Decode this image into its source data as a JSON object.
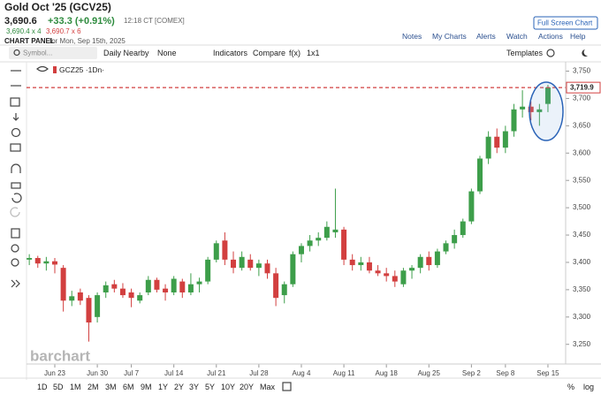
{
  "header": {
    "title": "Gold Oct '25 (GCV25)",
    "last": "3,690.6",
    "change": "+33.3 (+0.91%)",
    "time": "12:18 CT [COMEX]",
    "bid": "3,690.4 x 4",
    "ask": "3,690.7 x 6",
    "panel": "CHART PANEL",
    "date": "for Mon, Sep 15th, 2025",
    "fullscreen": "Full Screen Chart",
    "links": [
      "Notes",
      "My Charts",
      "Alerts",
      "Watch",
      "Actions",
      "Help"
    ]
  },
  "toolbar": {
    "symbol": "Symbol...",
    "items": [
      "Daily Nearby",
      "None",
      "Indicators",
      "Compare",
      "f(x)",
      "1x1"
    ],
    "templates": "Templates"
  },
  "periods": [
    "1D",
    "5D",
    "1M",
    "2M",
    "3M",
    "6M",
    "9M",
    "1Y",
    "2Y",
    "3Y",
    "5Y",
    "10Y",
    "20Y",
    "Max"
  ],
  "scale_options": [
    "%",
    "log"
  ],
  "chart_data": {
    "type": "candlestick",
    "symbol_label": "GCZ25 ·1Dn·",
    "watermark": "barchart",
    "categories": [
      null,
      null,
      null,
      "Jun 23",
      null,
      null,
      null,
      null,
      "Jun 30",
      null,
      null,
      null,
      "Jul 7",
      null,
      null,
      null,
      null,
      "Jul 14",
      null,
      null,
      null,
      null,
      "Jul 21",
      null,
      null,
      null,
      null,
      "Jul 28",
      null,
      null,
      null,
      null,
      "Aug 4",
      null,
      null,
      null,
      null,
      "Aug 11",
      null,
      null,
      null,
      null,
      "Aug 18",
      null,
      null,
      null,
      null,
      "Aug 25",
      null,
      null,
      null,
      null,
      "Sep 2",
      null,
      null,
      null,
      "Sep 8",
      null,
      null,
      null,
      null,
      "Sep 15"
    ],
    "open": [
      3405,
      3408,
      3398,
      3402,
      3390,
      3330,
      3345,
      3335,
      3300,
      3345,
      3360,
      3352,
      3345,
      3330,
      3345,
      3368,
      3352,
      3345,
      3365,
      3345,
      3360,
      3365,
      3405,
      3440,
      3405,
      3390,
      3405,
      3390,
      3398,
      3380,
      3340,
      3360,
      3415,
      3430,
      3440,
      3445,
      3455,
      3460,
      3405,
      3395,
      3400,
      3385,
      3380,
      3375,
      3360,
      3385,
      3390,
      3410,
      3395,
      3420,
      3435,
      3450,
      3475,
      3530,
      3590,
      3630,
      3610,
      3640,
      3680,
      3685,
      3675,
      3690
    ],
    "high": [
      3415,
      3412,
      3410,
      3408,
      3395,
      3348,
      3352,
      3340,
      3345,
      3365,
      3368,
      3362,
      3352,
      3345,
      3375,
      3372,
      3360,
      3375,
      3370,
      3380,
      3372,
      3410,
      3440,
      3455,
      3420,
      3420,
      3415,
      3405,
      3405,
      3390,
      3365,
      3420,
      3435,
      3450,
      3455,
      3475,
      3535,
      3465,
      3415,
      3410,
      3410,
      3395,
      3390,
      3385,
      3390,
      3395,
      3415,
      3420,
      3425,
      3440,
      3460,
      3480,
      3535,
      3595,
      3640,
      3645,
      3650,
      3690,
      3715,
      3695,
      3690,
      3725
    ],
    "low": [
      3395,
      3390,
      3385,
      3380,
      3310,
      3320,
      3322,
      3255,
      3290,
      3335,
      3345,
      3335,
      3318,
      3325,
      3340,
      3345,
      3330,
      3340,
      3335,
      3340,
      3345,
      3360,
      3400,
      3395,
      3380,
      3385,
      3385,
      3375,
      3370,
      3320,
      3325,
      3355,
      3400,
      3420,
      3430,
      3440,
      3445,
      3395,
      3385,
      3385,
      3380,
      3375,
      3365,
      3355,
      3355,
      3370,
      3380,
      3385,
      3390,
      3415,
      3425,
      3445,
      3470,
      3525,
      3580,
      3600,
      3600,
      3630,
      3665,
      3660,
      3650,
      3675
    ],
    "close": [
      3408,
      3398,
      3402,
      3396,
      3330,
      3338,
      3330,
      3290,
      3340,
      3358,
      3352,
      3340,
      3335,
      3340,
      3368,
      3350,
      3345,
      3370,
      3345,
      3360,
      3365,
      3405,
      3435,
      3405,
      3390,
      3410,
      3390,
      3398,
      3380,
      3335,
      3360,
      3415,
      3430,
      3440,
      3445,
      3465,
      3460,
      3405,
      3395,
      3400,
      3385,
      3380,
      3375,
      3365,
      3385,
      3390,
      3410,
      3395,
      3420,
      3435,
      3450,
      3475,
      3530,
      3590,
      3630,
      3610,
      3640,
      3680,
      3685,
      3675,
      3680,
      3719.9
    ],
    "up_color": "#3d9e4a",
    "down_color": "#d23f3f",
    "ylim": [
      3214,
      3767
    ],
    "yticks": [
      {
        "value": 3250,
        "label": "3,250"
      },
      {
        "value": 3300,
        "label": "3,300"
      },
      {
        "value": 3350,
        "label": "3,350"
      },
      {
        "value": 3400,
        "label": "3,400"
      },
      {
        "value": 3450,
        "label": "3,450"
      },
      {
        "value": 3500,
        "label": "3,500"
      },
      {
        "value": 3550,
        "label": "3,550"
      },
      {
        "value": 3600,
        "label": "3,600"
      },
      {
        "value": 3650,
        "label": "3,650"
      },
      {
        "value": 3700,
        "label": "3,700"
      },
      {
        "value": 3750,
        "label": "3,750"
      }
    ],
    "last_price": {
      "value": 3719.9,
      "label": "3,719.9"
    },
    "last_price_color": "#d23f3f"
  }
}
